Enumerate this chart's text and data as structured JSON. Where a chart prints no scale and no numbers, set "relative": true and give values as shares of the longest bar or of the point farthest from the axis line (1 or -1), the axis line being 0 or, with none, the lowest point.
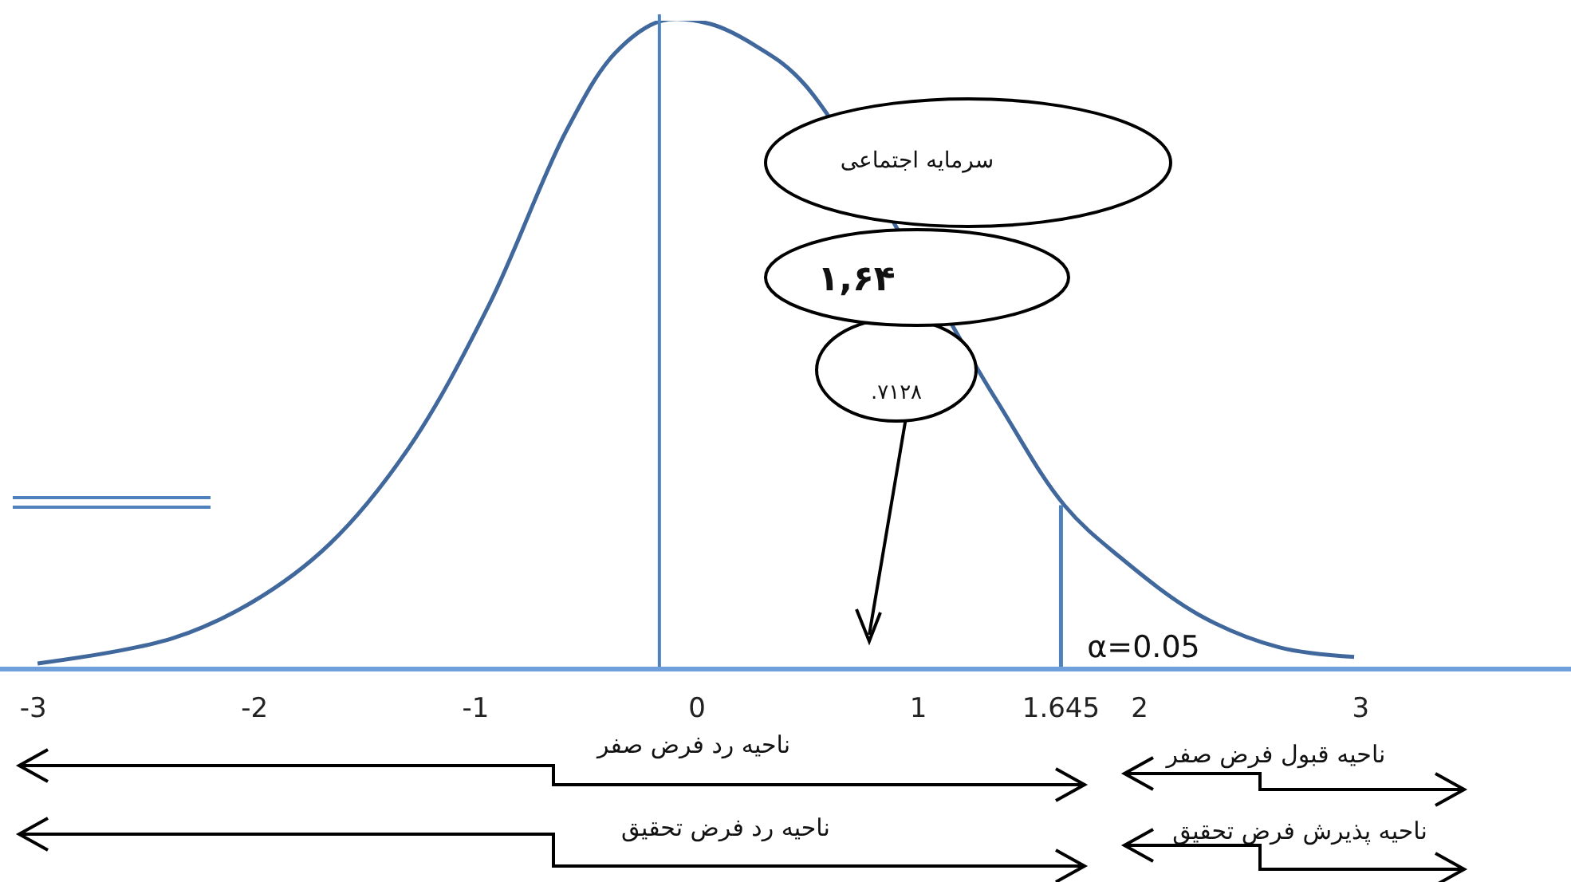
{
  "chart_data": {
    "type": "line",
    "relative": true,
    "xlim": [
      -3.15,
      3.95
    ],
    "xticks": [
      -3,
      -2,
      -1,
      0,
      1,
      1.645,
      2,
      3
    ],
    "tick_labels": "x",
    "grid": false,
    "marker": "none",
    "line_style": "solid",
    "series": [
      {
        "color": "#41689c",
        "x": [
          -2.98,
          -2.37,
          -2.01,
          -1.66,
          -1.3,
          -0.94,
          -0.59,
          -0.37,
          -0.16,
          0.06,
          0.27,
          0.49,
          1.34,
          1.66,
          1.91,
          2.27,
          2.63,
          2.97
        ],
        "values": [
          0.005,
          0.044,
          0.1,
          0.19,
          0.34,
          0.56,
          0.83,
          0.95,
          1,
          0.995,
          0.96,
          0.9,
          0.42,
          0.25,
          0.17,
          0.08,
          0.03,
          0.015
        ]
      },
      {
        "color": "#4f81bd",
        "x": [
          1.645,
          1.645
        ],
        "values": [
          0,
          0.25
        ]
      }
    ],
    "ref_lines": [
      {
        "axis": "x",
        "value": -0.17,
        "color": "#4f81bd"
      }
    ],
    "annotations": [
      "سرمایه اجتماعی",
      "۱,۶۴",
      ".۷۱۲۸",
      "α=0.05",
      "ناحیه رد فرض صفر",
      "ناحیه قبول فرض صفر",
      "ناحیه رد فرض تحقیق",
      "ناحیه پذیرش فرض تحقیق"
    ]
  }
}
